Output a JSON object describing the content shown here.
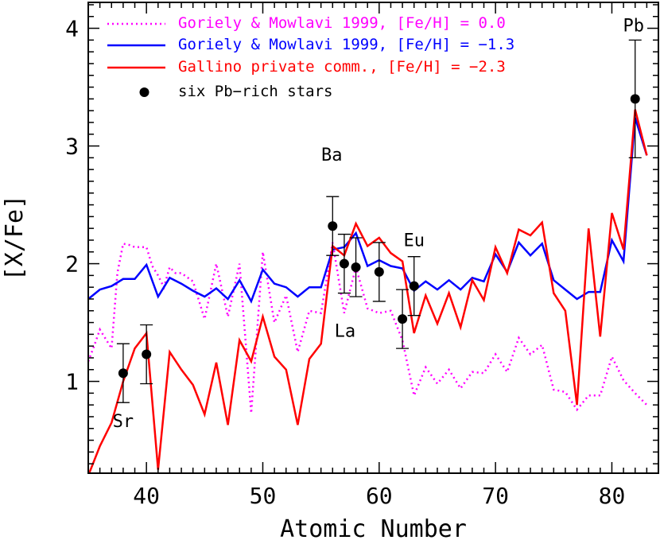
{
  "chart_data": {
    "type": "line",
    "xlabel": "Atomic Number",
    "ylabel": "[X/Fe]",
    "xlim": [
      35,
      84
    ],
    "ylim": [
      0.22,
      4.22
    ],
    "xticks": [
      40,
      50,
      60,
      70,
      80
    ],
    "yticks": [
      1,
      2,
      3,
      4
    ],
    "grid": false,
    "legend_position": "top-left",
    "series": [
      {
        "name": "Goriely & Mowlavi 1999, [Fe/H] = 0.0",
        "color": "#ff00ff",
        "style": "dotted",
        "x": [
          35,
          35.5,
          36,
          37,
          37.5,
          38,
          38.5,
          39,
          39.5,
          40,
          40.5,
          41,
          41.5,
          42,
          42.5,
          43,
          44,
          45,
          46,
          47,
          48,
          49,
          50,
          51,
          52,
          53,
          54,
          55,
          56,
          57,
          58,
          59,
          60,
          61,
          62,
          63,
          64,
          65,
          66,
          67,
          68,
          69,
          70,
          71,
          72,
          73,
          74,
          75,
          76,
          77,
          78,
          79,
          80,
          81,
          82,
          83
        ],
        "y": [
          1.17,
          1.3,
          1.44,
          1.28,
          1.92,
          2.17,
          2.16,
          2.14,
          2.14,
          2.14,
          1.98,
          1.9,
          1.8,
          1.97,
          1.92,
          1.92,
          1.85,
          1.53,
          2.0,
          1.55,
          2.0,
          0.73,
          2.1,
          1.5,
          1.73,
          1.25,
          1.6,
          1.58,
          2.18,
          1.58,
          1.97,
          1.62,
          1.58,
          1.6,
          1.35,
          0.88,
          1.12,
          0.98,
          1.1,
          0.94,
          1.08,
          1.07,
          1.23,
          1.08,
          1.37,
          1.23,
          1.31,
          0.93,
          0.91,
          0.76,
          0.88,
          0.88,
          1.21,
          1.01,
          0.9,
          0.8
        ]
      },
      {
        "name": "Goriely & Mowlavi 1999, [Fe/H] = −1.3",
        "color": "#0000ff",
        "style": "solid",
        "x": [
          35,
          36,
          37,
          38,
          39,
          40,
          41,
          42,
          43,
          44,
          45,
          46,
          47,
          48,
          49,
          50,
          51,
          52,
          53,
          54,
          55,
          56,
          57,
          58,
          59,
          60,
          61,
          62,
          63,
          64,
          65,
          66,
          67,
          68,
          69,
          70,
          71,
          72,
          73,
          74,
          75,
          76,
          77,
          78,
          79,
          80,
          81,
          82,
          83
        ],
        "y": [
          1.7,
          1.78,
          1.81,
          1.87,
          1.87,
          1.99,
          1.72,
          1.88,
          1.83,
          1.77,
          1.72,
          1.79,
          1.7,
          1.86,
          1.68,
          1.95,
          1.83,
          1.8,
          1.72,
          1.8,
          1.8,
          2.12,
          2.14,
          2.26,
          1.98,
          2.03,
          1.98,
          1.96,
          1.77,
          1.85,
          1.78,
          1.86,
          1.78,
          1.88,
          1.85,
          2.08,
          1.93,
          2.18,
          2.07,
          2.17,
          1.86,
          1.78,
          1.7,
          1.76,
          1.76,
          2.2,
          2.02,
          3.24,
          2.92
        ]
      },
      {
        "name": "Gallino private comm., [Fe/H] = −2.3",
        "color": "#ff0000",
        "style": "solid",
        "x": [
          35,
          36,
          37,
          38,
          39,
          40,
          41,
          42,
          43,
          44,
          45,
          46,
          47,
          48,
          49,
          50,
          51,
          52,
          53,
          54,
          55,
          56,
          57,
          58,
          59,
          60,
          61,
          62,
          63,
          64,
          65,
          66,
          67,
          68,
          69,
          70,
          71,
          72,
          73,
          74,
          75,
          76,
          77,
          78,
          79,
          80,
          81,
          82,
          83
        ],
        "y": [
          0.2,
          0.45,
          0.65,
          1.0,
          1.28,
          1.41,
          0.25,
          1.25,
          1.1,
          0.97,
          0.72,
          1.16,
          0.63,
          1.35,
          1.17,
          1.55,
          1.21,
          1.1,
          0.63,
          1.19,
          1.32,
          2.15,
          2.07,
          2.34,
          2.15,
          2.22,
          2.09,
          2.02,
          1.41,
          1.73,
          1.49,
          1.75,
          1.46,
          1.86,
          1.69,
          2.14,
          1.92,
          2.29,
          2.24,
          2.35,
          1.75,
          1.6,
          0.8,
          2.3,
          1.38,
          2.43,
          2.12,
          3.31,
          2.92
        ]
      },
      {
        "name": "six Pb−rich stars",
        "color": "#000000",
        "style": "points",
        "x": [
          38,
          40,
          56,
          57,
          58,
          60,
          62,
          63,
          82
        ],
        "y": [
          1.07,
          1.23,
          2.32,
          2.0,
          1.97,
          1.93,
          1.53,
          1.81,
          3.4
        ],
        "err": [
          0.25,
          0.25,
          0.25,
          0.25,
          0.25,
          0.25,
          0.25,
          0.25,
          0.5
        ]
      }
    ],
    "annotations": [
      {
        "text": "Sr",
        "x": 38,
        "y": 1.07
      },
      {
        "text": "Ba",
        "x": 56,
        "y": 2.32
      },
      {
        "text": "La",
        "x": 57,
        "y": 2.0
      },
      {
        "text": "Eu",
        "x": 63,
        "y": 1.81
      },
      {
        "text": "Pb",
        "x": 82,
        "y": 3.4
      }
    ]
  }
}
